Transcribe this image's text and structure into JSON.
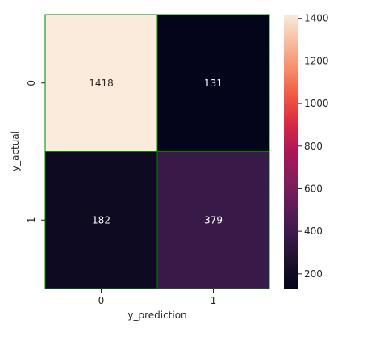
{
  "chart_data": {
    "type": "heatmap",
    "xlabel": "y_prediction",
    "ylabel": "y_actual",
    "x_categories": [
      "0",
      "1"
    ],
    "y_categories": [
      "0",
      "1"
    ],
    "values": [
      [
        1418,
        131
      ],
      [
        182,
        379
      ]
    ],
    "colorbar": {
      "ticks": [
        200,
        400,
        600,
        800,
        1000,
        1200,
        1400
      ],
      "min": 131,
      "max": 1418,
      "colormap": "rocket"
    },
    "cell_border_color": "#008000",
    "annotation_color_dark": "#ffffff",
    "annotation_color_light": "#262626"
  }
}
